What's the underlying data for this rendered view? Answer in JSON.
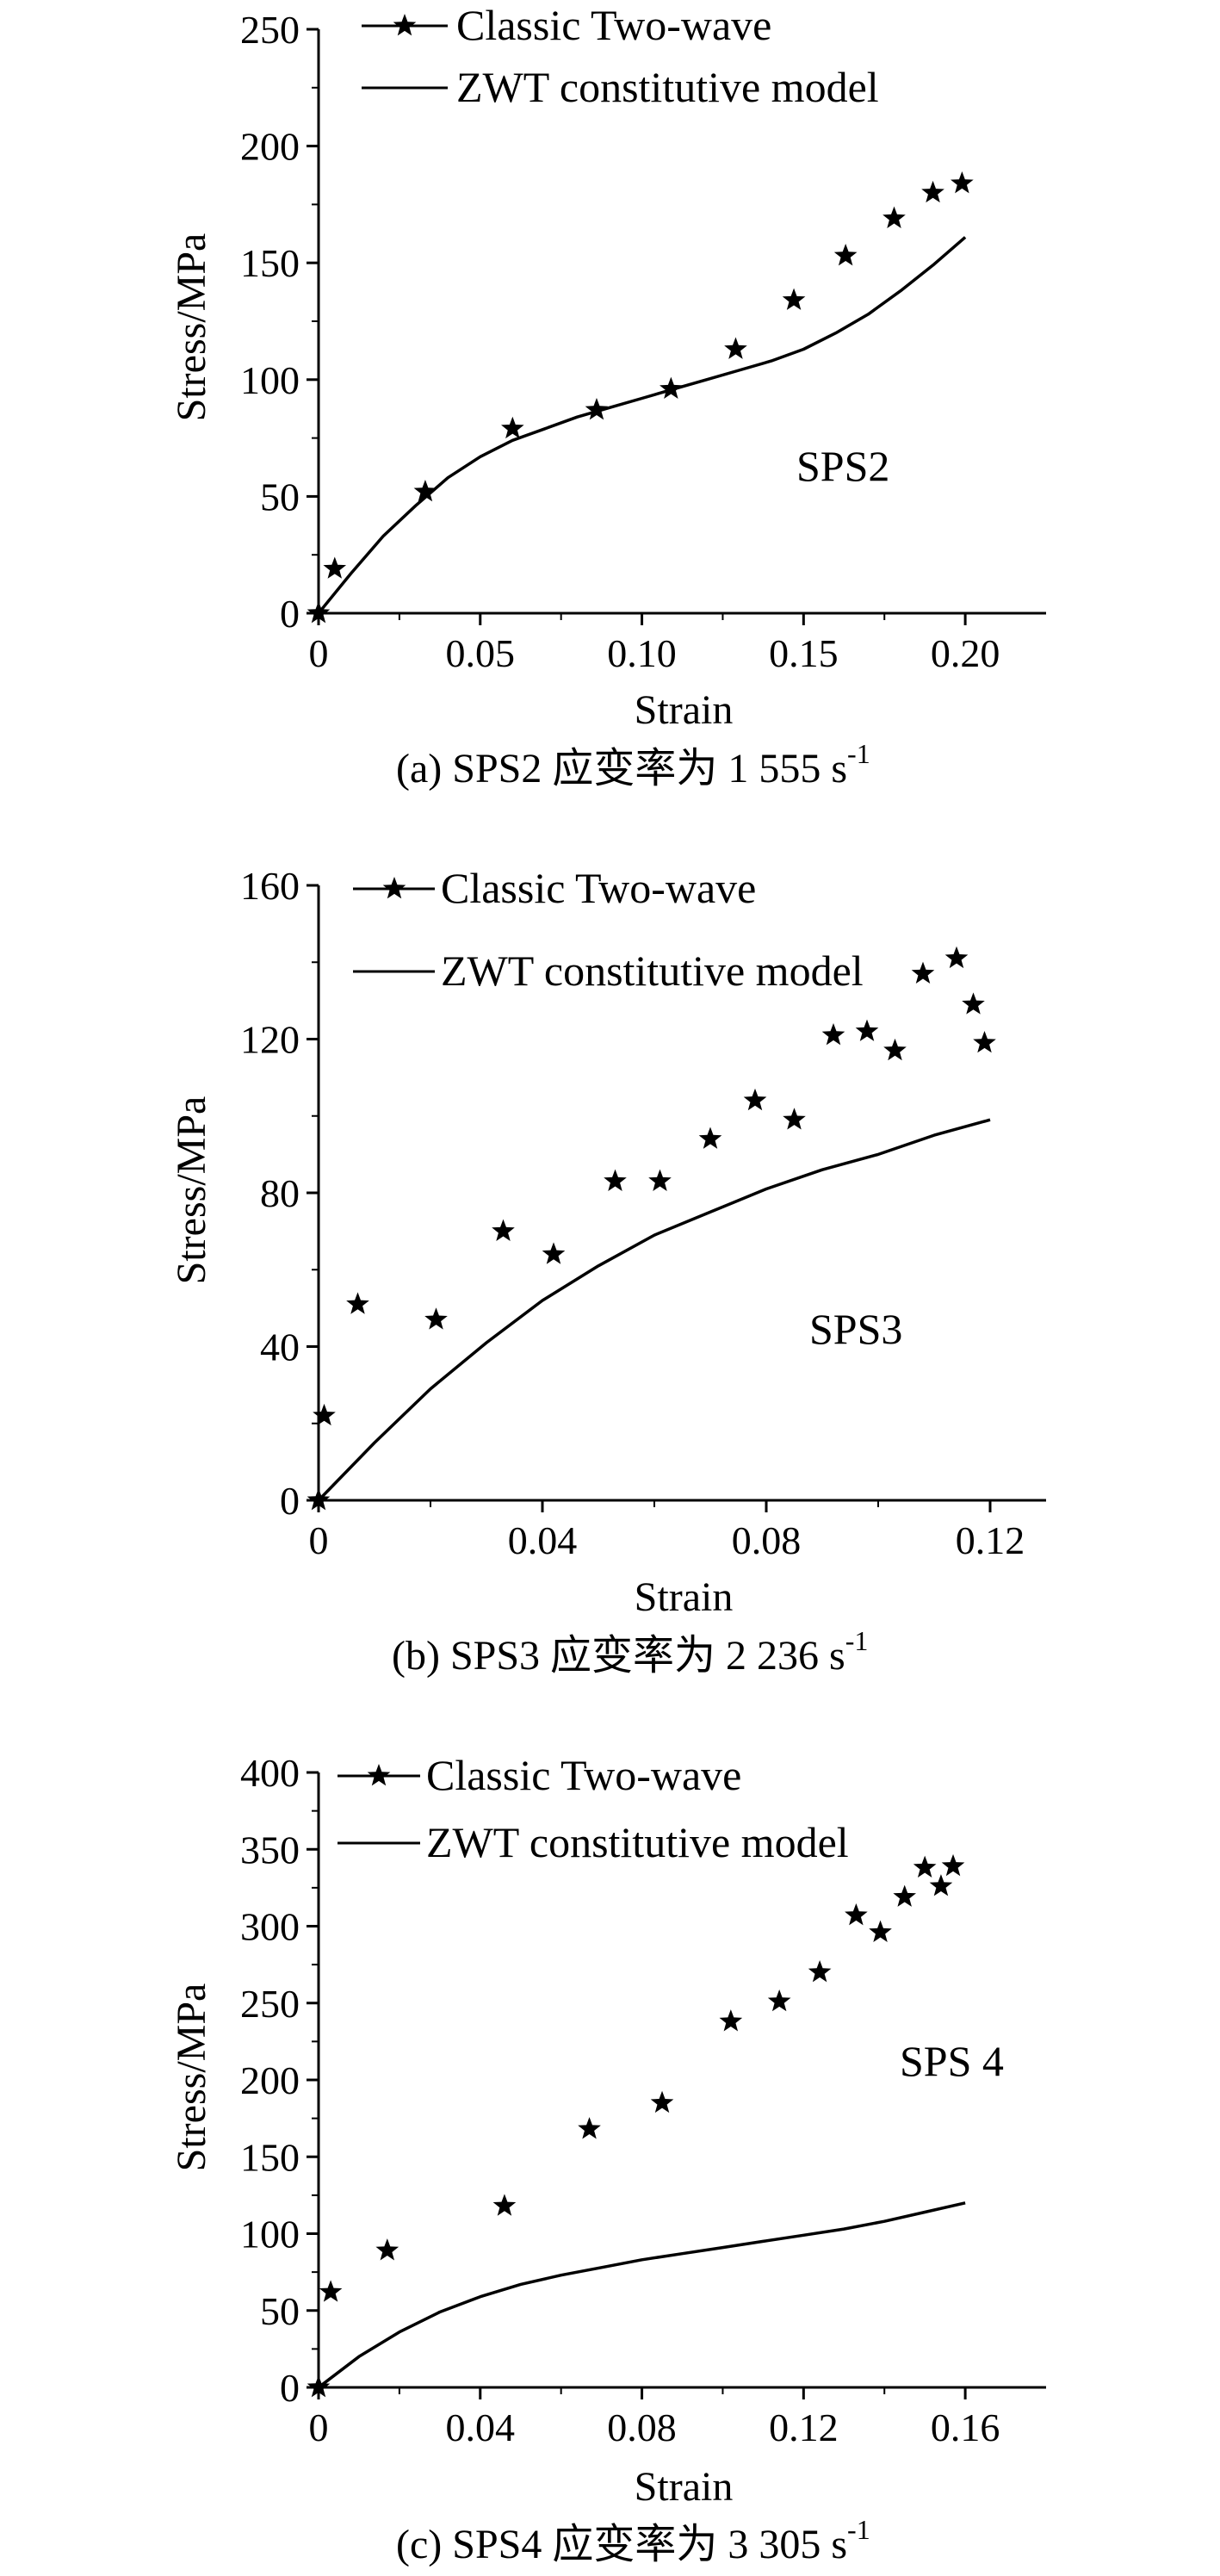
{
  "chart_data": [
    {
      "type": "scatter",
      "panel": "a",
      "caption": "(a) SPS2 应变率为 1 555 s",
      "caption_sup": "-1",
      "annotation": "SPS2",
      "xlabel": "Strain",
      "ylabel": "Stress/MPa",
      "xlim": [
        0,
        0.225
      ],
      "ylim": [
        0,
        250
      ],
      "xticks": [
        0,
        0.05,
        0.1,
        0.15,
        0.2
      ],
      "xtick_labels": [
        "0",
        "0.05",
        "0.10",
        "0.15",
        "0.20"
      ],
      "yticks": [
        0,
        50,
        100,
        150,
        200,
        250
      ],
      "ytick_labels": [
        "0",
        "50",
        "100",
        "150",
        "200",
        "250"
      ],
      "legend": [
        "Classic Two-wave",
        "ZWT constitutive model"
      ],
      "series": [
        {
          "name": "Classic Two-wave",
          "marker": "star",
          "x": [
            0,
            0.005,
            0.033,
            0.06,
            0.086,
            0.109,
            0.129,
            0.147,
            0.163,
            0.178,
            0.19,
            0.199
          ],
          "y": [
            0,
            19,
            52,
            79,
            87,
            96,
            113,
            134,
            153,
            169,
            180,
            184
          ]
        },
        {
          "name": "ZWT constitutive model",
          "marker": "line",
          "x": [
            0,
            0.01,
            0.02,
            0.03,
            0.04,
            0.05,
            0.06,
            0.07,
            0.08,
            0.09,
            0.1,
            0.11,
            0.12,
            0.13,
            0.14,
            0.15,
            0.16,
            0.17,
            0.18,
            0.19,
            0.2
          ],
          "y": [
            0,
            17,
            33,
            46,
            58,
            67,
            74,
            79,
            84,
            88,
            92,
            96,
            100,
            104,
            108,
            113,
            120,
            128,
            138,
            149,
            161
          ]
        }
      ]
    },
    {
      "type": "scatter",
      "panel": "b",
      "caption": "(b) SPS3 应变率为 2 236 s",
      "caption_sup": "-1",
      "annotation": "SPS3",
      "xlabel": "Strain",
      "ylabel": "Stress/MPa",
      "xlim": [
        0,
        0.13
      ],
      "ylim": [
        0,
        160
      ],
      "xticks": [
        0,
        0.04,
        0.08,
        0.12
      ],
      "xtick_labels": [
        "0",
        "0.04",
        "0.08",
        "0.12"
      ],
      "yticks": [
        0,
        40,
        80,
        120,
        160
      ],
      "ytick_labels": [
        "0",
        "40",
        "80",
        "120",
        "160"
      ],
      "legend": [
        "Classic Two-wave",
        "ZWT constitutive model"
      ],
      "series": [
        {
          "name": "Classic Two-wave",
          "marker": "star",
          "x": [
            0,
            0.001,
            0.007,
            0.021,
            0.033,
            0.042,
            0.053,
            0.061,
            0.07,
            0.078,
            0.085,
            0.092,
            0.098,
            0.103,
            0.108,
            0.114,
            0.117,
            0.119
          ],
          "y": [
            0,
            22,
            51,
            47,
            70,
            64,
            83,
            83,
            94,
            104,
            99,
            121,
            122,
            117,
            137,
            141,
            129,
            119
          ]
        },
        {
          "name": "ZWT constitutive model",
          "marker": "line",
          "x": [
            0,
            0.01,
            0.02,
            0.03,
            0.04,
            0.05,
            0.06,
            0.07,
            0.08,
            0.09,
            0.1,
            0.11,
            0.12
          ],
          "y": [
            0,
            15,
            29,
            41,
            52,
            61,
            69,
            75,
            81,
            86,
            90,
            95,
            99
          ]
        }
      ]
    },
    {
      "type": "scatter",
      "panel": "c",
      "caption": "(c) SPS4 应变率为 3 305 s",
      "caption_sup": "-1",
      "annotation": "SPS 4",
      "xlabel": "Strain",
      "ylabel": "Stress/MPa",
      "xlim": [
        0,
        0.18
      ],
      "ylim": [
        0,
        400
      ],
      "xticks": [
        0,
        0.04,
        0.08,
        0.12,
        0.16
      ],
      "xtick_labels": [
        "0",
        "0.04",
        "0.08",
        "0.12",
        "0.16"
      ],
      "yticks": [
        0,
        50,
        100,
        150,
        200,
        250,
        300,
        350,
        400
      ],
      "ytick_labels": [
        "0",
        "50",
        "100",
        "150",
        "200",
        "250",
        "300",
        "350",
        "400"
      ],
      "legend": [
        "Classic Two-wave",
        "ZWT constitutive model"
      ],
      "series": [
        {
          "name": "Classic Two-wave",
          "marker": "star",
          "x": [
            0,
            0.003,
            0.017,
            0.046,
            0.067,
            0.085,
            0.102,
            0.114,
            0.124,
            0.133,
            0.139,
            0.145,
            0.15,
            0.154,
            0.157
          ],
          "y": [
            0,
            62,
            89,
            118,
            168,
            185,
            238,
            251,
            270,
            307,
            296,
            319,
            338,
            326,
            339
          ]
        },
        {
          "name": "ZWT constitutive model",
          "marker": "line",
          "x": [
            0,
            0.01,
            0.02,
            0.03,
            0.04,
            0.05,
            0.06,
            0.07,
            0.08,
            0.09,
            0.1,
            0.11,
            0.12,
            0.13,
            0.14,
            0.15,
            0.16
          ],
          "y": [
            0,
            20,
            36,
            49,
            59,
            67,
            73,
            78,
            83,
            87,
            91,
            95,
            99,
            103,
            108,
            114,
            120
          ]
        }
      ]
    }
  ]
}
